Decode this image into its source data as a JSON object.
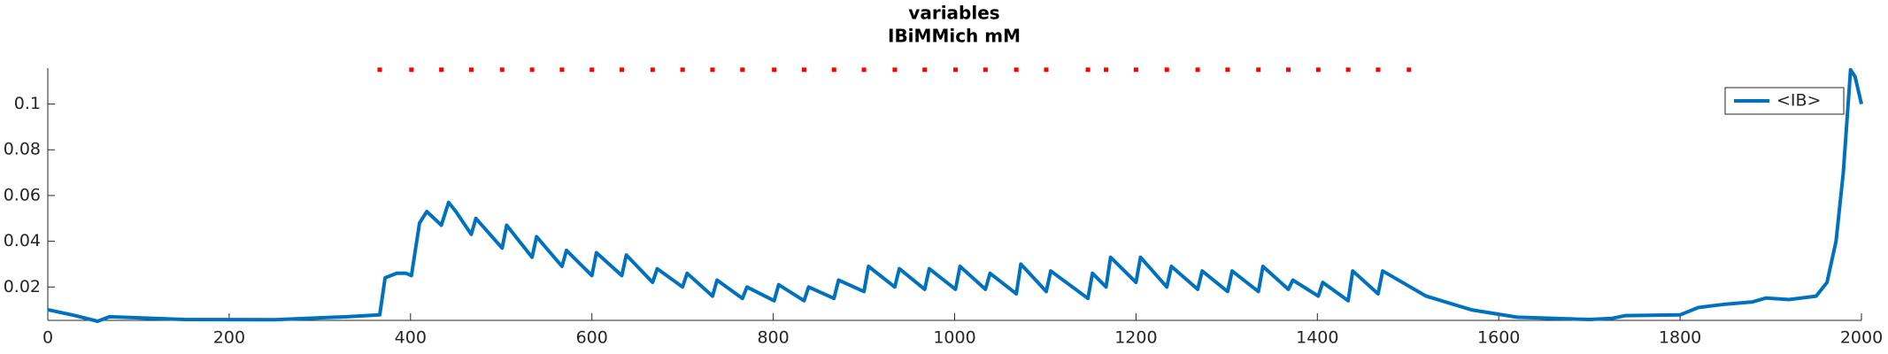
{
  "chart_data": {
    "type": "line",
    "title": "variables",
    "subtitle": "IBiMMich mM",
    "xlim": [
      0,
      2000
    ],
    "xticks": [
      0,
      200,
      400,
      600,
      800,
      1000,
      1200,
      1400,
      1600,
      1800,
      2000
    ],
    "ylim": [
      0.0054,
      0.1157
    ],
    "yticks": [
      0.02,
      0.04,
      0.06,
      0.08,
      0.1
    ],
    "legend": "northeast",
    "series": [
      {
        "name": "<IB>",
        "color": "#0072bd",
        "x": [
          0,
          30,
          55,
          68,
          150,
          250,
          330,
          366,
          372,
          385,
          395,
          401,
          410,
          418,
          434,
          442,
          450,
          467,
          472,
          501,
          506,
          534,
          539,
          567,
          572,
          600,
          605,
          633,
          638,
          667,
          672,
          700,
          705,
          733,
          738,
          766,
          771,
          801,
          806,
          834,
          839,
          867,
          872,
          900,
          905,
          934,
          939,
          967,
          972,
          1001,
          1006,
          1034,
          1039,
          1068,
          1073,
          1101,
          1106,
          1147,
          1152,
          1167,
          1172,
          1200,
          1205,
          1234,
          1239,
          1268,
          1273,
          1301,
          1306,
          1335,
          1340,
          1368,
          1373,
          1401,
          1406,
          1434,
          1439,
          1467,
          1472,
          1520,
          1570,
          1620,
          1700,
          1725,
          1740,
          1800,
          1820,
          1850,
          1880,
          1895,
          1920,
          1950,
          1962,
          1972,
          1980,
          1988,
          1993,
          2000
        ],
        "values": [
          0.0101,
          0.0075,
          0.005,
          0.007,
          0.0058,
          0.0057,
          0.007,
          0.0078,
          0.024,
          0.026,
          0.026,
          0.025,
          0.048,
          0.053,
          0.047,
          0.057,
          0.053,
          0.043,
          0.05,
          0.037,
          0.047,
          0.033,
          0.042,
          0.029,
          0.036,
          0.025,
          0.035,
          0.025,
          0.034,
          0.022,
          0.028,
          0.02,
          0.026,
          0.016,
          0.023,
          0.015,
          0.02,
          0.014,
          0.021,
          0.014,
          0.02,
          0.015,
          0.023,
          0.018,
          0.029,
          0.02,
          0.028,
          0.019,
          0.028,
          0.019,
          0.029,
          0.019,
          0.026,
          0.017,
          0.03,
          0.018,
          0.027,
          0.015,
          0.026,
          0.02,
          0.033,
          0.022,
          0.033,
          0.02,
          0.029,
          0.019,
          0.027,
          0.018,
          0.027,
          0.018,
          0.029,
          0.019,
          0.023,
          0.016,
          0.022,
          0.014,
          0.027,
          0.017,
          0.027,
          0.016,
          0.01,
          0.0068,
          0.0058,
          0.0063,
          0.0075,
          0.0078,
          0.011,
          0.0125,
          0.0135,
          0.0152,
          0.0145,
          0.016,
          0.022,
          0.04,
          0.07,
          0.115,
          0.112,
          0.1
        ]
      },
      {
        "color": "#ff0000",
        "marker": "dot",
        "x": [
          366,
          401,
          434,
          467,
          501,
          534,
          567,
          600,
          633,
          667,
          700,
          733,
          766,
          801,
          834,
          867,
          900,
          934,
          967,
          1001,
          1034,
          1068,
          1101,
          1147,
          1167,
          1200,
          1234,
          1268,
          1301,
          1335,
          1368,
          1401,
          1434,
          1467,
          1501
        ],
        "values": [
          0.115,
          0.115,
          0.115,
          0.115,
          0.115,
          0.115,
          0.115,
          0.115,
          0.115,
          0.115,
          0.115,
          0.115,
          0.115,
          0.115,
          0.115,
          0.115,
          0.115,
          0.115,
          0.115,
          0.115,
          0.115,
          0.115,
          0.115,
          0.115,
          0.115,
          0.115,
          0.115,
          0.115,
          0.115,
          0.115,
          0.115,
          0.115,
          0.115,
          0.115,
          0.115
        ]
      }
    ]
  }
}
